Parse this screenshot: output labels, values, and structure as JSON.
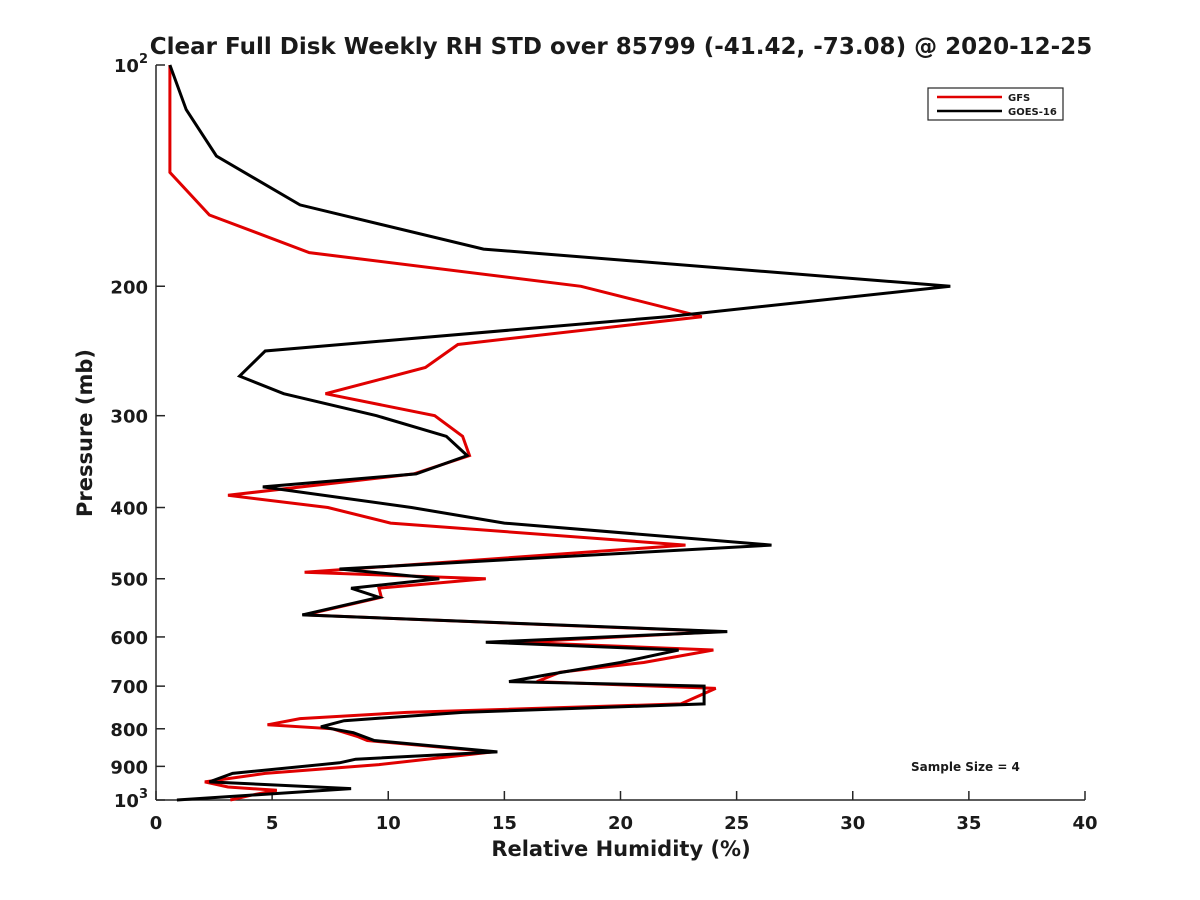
{
  "chart_data": {
    "type": "line",
    "title": "Clear Full Disk Weekly RH STD over 85799 (-41.42, -73.08) @ 2020-12-25",
    "xlabel": "Relative Humidity (%)",
    "ylabel": "Pressure (mb)",
    "xlim": [
      0,
      40
    ],
    "ylim": [
      100,
      1000
    ],
    "yscale": "log",
    "y_reversed": true,
    "grid": false,
    "legend_position": "top-right",
    "x_ticks": [
      0,
      5,
      10,
      15,
      20,
      25,
      30,
      35,
      40
    ],
    "y_ticks": [
      {
        "value": 100,
        "label": "10",
        "sup": "2"
      },
      {
        "value": 200,
        "label": "200",
        "sup": ""
      },
      {
        "value": 300,
        "label": "300",
        "sup": ""
      },
      {
        "value": 400,
        "label": "400",
        "sup": ""
      },
      {
        "value": 500,
        "label": "500",
        "sup": ""
      },
      {
        "value": 600,
        "label": "600",
        "sup": ""
      },
      {
        "value": 700,
        "label": "700",
        "sup": ""
      },
      {
        "value": 800,
        "label": "800",
        "sup": ""
      },
      {
        "value": 900,
        "label": "900",
        "sup": ""
      },
      {
        "value": 1000,
        "label": "10",
        "sup": "3"
      }
    ],
    "annotation": "Sample Size = 4",
    "series": [
      {
        "name": "GFS",
        "color": "#e00000",
        "points": [
          [
            0.6,
            100
          ],
          [
            0.6,
            125
          ],
          [
            0.6,
            140
          ],
          [
            2.3,
            160
          ],
          [
            6.6,
            180
          ],
          [
            18.3,
            200
          ],
          [
            23.5,
            220
          ],
          [
            13.0,
            240
          ],
          [
            11.6,
            258
          ],
          [
            7.3,
            280
          ],
          [
            12.0,
            300
          ],
          [
            13.2,
            320
          ],
          [
            13.5,
            340
          ],
          [
            11.1,
            360
          ],
          [
            3.1,
            385
          ],
          [
            7.4,
            400
          ],
          [
            10.1,
            420
          ],
          [
            22.8,
            450
          ],
          [
            6.4,
            490
          ],
          [
            14.2,
            500
          ],
          [
            9.6,
            515
          ],
          [
            9.7,
            530
          ],
          [
            6.4,
            560
          ],
          [
            24.3,
            590
          ],
          [
            15.6,
            610
          ],
          [
            24.0,
            625
          ],
          [
            21.0,
            650
          ],
          [
            17.4,
            670
          ],
          [
            16.4,
            690
          ],
          [
            24.1,
            705
          ],
          [
            22.6,
            740
          ],
          [
            10.8,
            760
          ],
          [
            6.2,
            775
          ],
          [
            4.8,
            790
          ],
          [
            7.6,
            800
          ],
          [
            8.7,
            820
          ],
          [
            9.1,
            830
          ],
          [
            14.5,
            860
          ],
          [
            9.6,
            895
          ],
          [
            4.7,
            920
          ],
          [
            2.1,
            945
          ],
          [
            3.1,
            960
          ],
          [
            5.2,
            970
          ],
          [
            4.1,
            985
          ],
          [
            3.2,
            1000
          ]
        ]
      },
      {
        "name": "GOES-16",
        "color": "#000000",
        "points": [
          [
            0.6,
            100
          ],
          [
            1.3,
            115
          ],
          [
            2.6,
            133
          ],
          [
            6.2,
            155
          ],
          [
            14.1,
            178
          ],
          [
            34.2,
            200
          ],
          [
            22.0,
            220
          ],
          [
            4.7,
            245
          ],
          [
            3.6,
            265
          ],
          [
            5.5,
            280
          ],
          [
            9.5,
            300
          ],
          [
            12.5,
            320
          ],
          [
            13.4,
            340
          ],
          [
            11.2,
            360
          ],
          [
            4.6,
            375
          ],
          [
            11.0,
            400
          ],
          [
            15.0,
            420
          ],
          [
            26.5,
            450
          ],
          [
            7.9,
            485
          ],
          [
            12.2,
            500
          ],
          [
            8.4,
            515
          ],
          [
            9.6,
            530
          ],
          [
            6.3,
            560
          ],
          [
            24.6,
            590
          ],
          [
            14.2,
            610
          ],
          [
            22.5,
            625
          ],
          [
            20.0,
            650
          ],
          [
            16.9,
            675
          ],
          [
            15.2,
            690
          ],
          [
            23.6,
            700
          ],
          [
            23.6,
            740
          ],
          [
            13.2,
            760
          ],
          [
            8.1,
            780
          ],
          [
            7.1,
            795
          ],
          [
            8.5,
            810
          ],
          [
            9.4,
            830
          ],
          [
            14.7,
            860
          ],
          [
            8.6,
            880
          ],
          [
            7.9,
            890
          ],
          [
            3.3,
            920
          ],
          [
            2.3,
            945
          ],
          [
            8.4,
            965
          ],
          [
            0.9,
            1000
          ]
        ]
      }
    ]
  }
}
